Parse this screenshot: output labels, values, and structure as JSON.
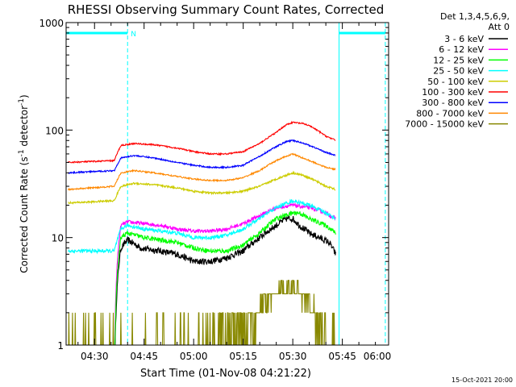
{
  "chart_data": {
    "type": "line",
    "title": "RHESSI Observing Summary Count Rates, Corrected",
    "xlabel": "Start Time (01-Nov-08 04:21:22)",
    "ylabel_main": "Corrected Count Rate (s",
    "ylabel_sup1": "-1",
    "ylabel_mid": " detector",
    "ylabel_sup2": "-1",
    "ylabel_end": ")",
    "yscale": "log",
    "ylim": [
      1,
      1000
    ],
    "xlim": [
      21.4,
      119
    ],
    "x_units": "minutes after 04:00 UT",
    "y_ticks": [
      {
        "value": 1,
        "label": "1"
      },
      {
        "value": 10,
        "label": "10"
      },
      {
        "value": 100,
        "label": "100"
      },
      {
        "value": 1000,
        "label": "1000"
      }
    ],
    "x_ticks": [
      {
        "value": 30,
        "label": "04:30"
      },
      {
        "value": 45,
        "label": "04:45"
      },
      {
        "value": 60,
        "label": "05:00"
      },
      {
        "value": 75,
        "label": "05:15"
      },
      {
        "value": 90,
        "label": "05:30"
      },
      {
        "value": 105,
        "label": "05:45"
      },
      {
        "value": 120,
        "label": "06:00"
      }
    ],
    "legend_title": [
      "Det 1,3,4,5,6,9,",
      "Att 0"
    ],
    "legend_position": "right",
    "series": [
      {
        "name": "3 - 6 keV",
        "color": "#000000",
        "noise": 0.07,
        "x": [
          36,
          38,
          40,
          44,
          50,
          55,
          60,
          65,
          70,
          75,
          80,
          85,
          88,
          90,
          92,
          95,
          98,
          101,
          103
        ],
        "y": [
          0,
          8,
          9.5,
          8,
          7.5,
          7,
          6,
          6,
          6.5,
          7.5,
          10,
          13,
          15,
          15,
          13,
          11,
          10,
          9,
          7
        ]
      },
      {
        "name": "6 - 12 keV",
        "color": "#ff00ff",
        "noise": 0.04,
        "x": [
          36,
          38,
          40,
          45,
          50,
          55,
          60,
          65,
          70,
          75,
          80,
          85,
          90,
          95,
          100,
          103
        ],
        "y": [
          0,
          13,
          14,
          13.5,
          13,
          12,
          11.5,
          11.5,
          12,
          13.5,
          16,
          19,
          20,
          19,
          17,
          15
        ]
      },
      {
        "name": "12 - 25 keV",
        "color": "#00ff00",
        "noise": 0.05,
        "x": [
          36,
          38,
          40,
          45,
          50,
          55,
          60,
          65,
          70,
          75,
          80,
          85,
          90,
          92,
          95,
          100,
          103
        ],
        "y": [
          0,
          10,
          11,
          10,
          9.5,
          9,
          8,
          7.5,
          7.5,
          8.5,
          11,
          15,
          17,
          17,
          15,
          13,
          11
        ]
      },
      {
        "name": "25 - 50 keV",
        "color": "#00ffff",
        "noise": 0.04,
        "x": [
          22,
          36,
          38,
          40,
          45,
          50,
          55,
          60,
          65,
          70,
          75,
          80,
          85,
          90,
          95,
          100,
          103
        ],
        "y": [
          7.5,
          7.5,
          12,
          13,
          12,
          11.5,
          11,
          10,
          10,
          10.5,
          12,
          15,
          19,
          22,
          20,
          17,
          15
        ]
      },
      {
        "name": "50 - 100 keV",
        "color": "#cccc00",
        "noise": 0.02,
        "x": [
          22,
          36,
          38,
          42,
          48,
          55,
          60,
          65,
          70,
          75,
          80,
          85,
          88,
          90,
          93,
          95,
          100,
          103
        ],
        "y": [
          21,
          22,
          30,
          32,
          31,
          29,
          27,
          26,
          26,
          27,
          30,
          35,
          38,
          40,
          38,
          36,
          30,
          28
        ]
      },
      {
        "name": "100 - 300 keV",
        "color": "#ff0000",
        "noise": 0.015,
        "x": [
          22,
          36,
          38,
          42,
          48,
          55,
          60,
          65,
          70,
          75,
          80,
          85,
          88,
          90,
          93,
          95,
          100,
          103
        ],
        "y": [
          50,
          52,
          72,
          75,
          73,
          68,
          63,
          60,
          60,
          63,
          75,
          95,
          112,
          118,
          115,
          110,
          88,
          80
        ]
      },
      {
        "name": "300 - 800 keV",
        "color": "#0000ff",
        "noise": 0.015,
        "x": [
          22,
          36,
          38,
          42,
          48,
          55,
          60,
          65,
          70,
          75,
          80,
          85,
          88,
          90,
          93,
          95,
          100,
          103
        ],
        "y": [
          40,
          42,
          55,
          58,
          55,
          50,
          47,
          45,
          45,
          47,
          57,
          70,
          78,
          80,
          76,
          72,
          62,
          58
        ]
      },
      {
        "name": "800 - 7000 keV",
        "color": "#ff8800",
        "noise": 0.015,
        "x": [
          22,
          36,
          38,
          42,
          48,
          55,
          60,
          65,
          70,
          75,
          80,
          85,
          88,
          90,
          93,
          95,
          100,
          103
        ],
        "y": [
          28,
          30,
          40,
          42,
          40,
          37,
          35,
          34,
          34,
          36,
          42,
          52,
          57,
          60,
          55,
          52,
          45,
          43
        ]
      },
      {
        "name": "7000 - 15000 keV",
        "color": "#888800",
        "noise": 0,
        "x": [
          22,
          60,
          75,
          80,
          82,
          85,
          88,
          90,
          92,
          95,
          98,
          104
        ],
        "y": [
          1,
          1,
          1.5,
          2,
          2.5,
          3,
          3.5,
          3.5,
          3,
          2.5,
          1.5,
          1
        ]
      }
    ],
    "annotation": {
      "label": "N",
      "color": "#00ffff",
      "night_ranges": [
        [
          21.4,
          40
        ],
        [
          104,
          118
        ]
      ]
    },
    "footer_date": "15-Oct-2021 20:00"
  }
}
